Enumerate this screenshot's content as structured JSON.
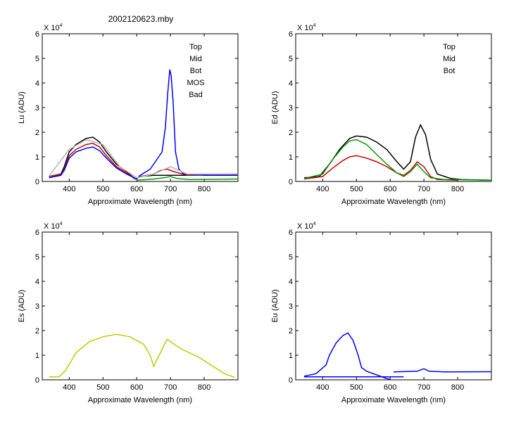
{
  "figure": {
    "title": "2002120623.mby"
  },
  "colors": {
    "top": "#000000",
    "mid": "#cc0000",
    "bot": "#009900",
    "mos": "#0000ff",
    "bad": "#b4b4b4",
    "es": "#c8c800",
    "eu": "#0000ff"
  },
  "chart_data": [
    {
      "id": "lu",
      "type": "line",
      "ylabel": "Lu (ADU)",
      "xlabel": "Approximate Wavelength (nm)",
      "exponent_label": "X 10",
      "exponent_power": "4",
      "xlim": [
        320,
        900
      ],
      "ylim": [
        0,
        6
      ],
      "x_ticks": [
        400,
        500,
        600,
        700,
        800
      ],
      "y_ticks": [
        0,
        1,
        2,
        3,
        4,
        5,
        6
      ],
      "legend": [
        {
          "label": "Top",
          "color": "#000000"
        },
        {
          "label": "Mid",
          "color": "#cc0000"
        },
        {
          "label": "Bot",
          "color": "#009900"
        },
        {
          "label": "MOS",
          "color": "#0000ff"
        },
        {
          "label": "Bad",
          "color": "#b4b4b4"
        }
      ],
      "series": [
        {
          "name": "Top",
          "color": "#000000",
          "x": [
            340,
            375,
            385,
            400,
            420,
            450,
            470,
            490,
            510,
            540,
            570,
            595,
            610,
            650,
            700,
            750,
            800,
            900
          ],
          "y": [
            0.2,
            0.3,
            0.6,
            1.2,
            1.5,
            1.75,
            1.8,
            1.6,
            1.2,
            0.7,
            0.4,
            0.1,
            0.2,
            0.25,
            0.25,
            0.25,
            0.27,
            0.3
          ]
        },
        {
          "name": "Mid",
          "color": "#cc0000",
          "x": [
            340,
            375,
            385,
            400,
            420,
            450,
            470,
            490,
            510,
            540,
            570,
            595,
            610,
            650,
            670,
            690,
            710,
            750,
            900
          ],
          "y": [
            0.2,
            0.28,
            0.5,
            1.05,
            1.3,
            1.5,
            1.55,
            1.4,
            1.05,
            0.6,
            0.35,
            0.1,
            0.2,
            0.3,
            0.45,
            0.5,
            0.4,
            0.25,
            0.28
          ]
        },
        {
          "name": "Bot",
          "color": "#009900",
          "x": [
            600,
            650,
            680,
            700,
            720,
            760,
            900
          ],
          "y": [
            0.05,
            0.1,
            0.15,
            0.2,
            0.12,
            0.08,
            0.1
          ]
        },
        {
          "name": "MOS",
          "color": "#0000ff",
          "x": [
            340,
            375,
            385,
            400,
            420,
            450,
            470,
            490,
            510,
            540,
            570,
            600,
            610,
            640,
            660,
            675,
            685,
            692,
            698,
            702,
            708,
            715,
            725,
            740,
            800,
            900
          ],
          "y": [
            0.15,
            0.25,
            0.45,
            0.95,
            1.2,
            1.35,
            1.4,
            1.25,
            0.95,
            0.55,
            0.3,
            0.1,
            0.25,
            0.5,
            0.9,
            1.2,
            2.2,
            3.6,
            4.55,
            4.3,
            3.2,
            1.2,
            0.5,
            0.3,
            0.25,
            0.25
          ]
        },
        {
          "name": "Bad",
          "color": "#b4b4b4",
          "x": [
            340,
            400,
            450,
            500,
            550,
            600,
            650,
            700,
            750,
            900
          ],
          "y": [
            0.22,
            1.3,
            1.7,
            1.5,
            0.6,
            0.15,
            0.3,
            0.6,
            0.3,
            0.3
          ]
        }
      ]
    },
    {
      "id": "ed",
      "type": "line",
      "ylabel": "Ed  (ADU)",
      "xlabel": "Approximate Wavelength (nm)",
      "exponent_label": "X 10",
      "exponent_power": "4",
      "xlim": [
        320,
        900
      ],
      "ylim": [
        0,
        6
      ],
      "x_ticks": [
        400,
        500,
        600,
        700,
        800
      ],
      "y_ticks": [
        0,
        1,
        2,
        3,
        4,
        5,
        6
      ],
      "legend": [
        {
          "label": "Top",
          "color": "#000000"
        },
        {
          "label": "Mid",
          "color": "#cc0000"
        },
        {
          "label": "Bot",
          "color": "#009900"
        }
      ],
      "series": [
        {
          "name": "Top",
          "color": "#000000",
          "x": [
            345,
            390,
            420,
            450,
            480,
            500,
            530,
            560,
            590,
            620,
            640,
            660,
            675,
            690,
            705,
            720,
            740,
            780,
            810,
            900
          ],
          "y": [
            0.15,
            0.2,
            0.7,
            1.3,
            1.75,
            1.85,
            1.8,
            1.6,
            1.3,
            0.8,
            0.5,
            0.8,
            1.8,
            2.3,
            1.9,
            0.9,
            0.3,
            0.12,
            0.08,
            0.05
          ]
        },
        {
          "name": "Mid",
          "color": "#cc0000",
          "x": [
            345,
            400,
            430,
            460,
            480,
            500,
            530,
            560,
            590,
            620,
            640,
            660,
            680,
            700,
            720,
            740,
            800
          ],
          "y": [
            0.1,
            0.2,
            0.55,
            0.85,
            1.0,
            1.05,
            0.95,
            0.8,
            0.6,
            0.35,
            0.25,
            0.45,
            0.8,
            0.6,
            0.2,
            0.08,
            0.05
          ]
        },
        {
          "name": "Bot",
          "color": "#009900",
          "x": [
            345,
            400,
            430,
            460,
            480,
            500,
            530,
            560,
            590,
            620,
            640,
            660,
            680,
            700,
            720,
            760,
            900
          ],
          "y": [
            0.12,
            0.3,
            0.9,
            1.4,
            1.65,
            1.7,
            1.5,
            1.1,
            0.7,
            0.35,
            0.2,
            0.4,
            0.7,
            0.4,
            0.15,
            0.08,
            0.05
          ]
        }
      ]
    },
    {
      "id": "es",
      "type": "line",
      "ylabel": "Es  (ADU)",
      "xlabel": "Approximate Wavelength (nm)",
      "exponent_label": "X 10",
      "exponent_power": "4",
      "xlim": [
        320,
        900
      ],
      "ylim": [
        0,
        6
      ],
      "x_ticks": [
        400,
        500,
        600,
        700,
        800
      ],
      "y_ticks": [
        0,
        1,
        2,
        3,
        4,
        5,
        6
      ],
      "legend": [],
      "series": [
        {
          "name": "",
          "color": "#c8c800",
          "x": [
            340,
            370,
            390,
            420,
            460,
            500,
            540,
            580,
            620,
            640,
            650,
            670,
            690,
            710,
            740,
            780,
            820,
            860,
            890
          ],
          "y": [
            0.12,
            0.12,
            0.4,
            1.1,
            1.55,
            1.75,
            1.85,
            1.75,
            1.45,
            1.0,
            0.55,
            1.1,
            1.65,
            1.45,
            1.2,
            0.95,
            0.6,
            0.25,
            0.1
          ]
        }
      ]
    },
    {
      "id": "eu",
      "type": "line",
      "ylabel": "Eu  (ADU)",
      "xlabel": "Approximate Wavelength (nm)",
      "exponent_label": "X 10",
      "exponent_power": "4",
      "xlim": [
        320,
        900
      ],
      "ylim": [
        0,
        6
      ],
      "x_ticks": [
        400,
        500,
        600,
        700,
        800
      ],
      "y_ticks": [
        0,
        1,
        2,
        3,
        4,
        5,
        6
      ],
      "legend": [],
      "series": [
        {
          "name": "",
          "color": "#0000ff",
          "x": [
            345,
            380,
            410,
            420,
            440,
            460,
            475,
            490,
            505,
            515,
            530,
            560,
            590,
            600
          ],
          "y": [
            0.15,
            0.25,
            0.6,
            1.0,
            1.5,
            1.8,
            1.9,
            1.6,
            1.0,
            0.5,
            0.35,
            0.2,
            0.05,
            0.02
          ]
        },
        {
          "name": "",
          "color": "#0000ff",
          "x": [
            345,
            640
          ],
          "y": [
            0.12,
            0.12
          ]
        },
        {
          "name": "",
          "color": "#0000ff",
          "x": [
            610,
            680,
            700,
            715,
            760,
            900
          ],
          "y": [
            0.32,
            0.35,
            0.45,
            0.35,
            0.32,
            0.33
          ]
        }
      ]
    }
  ]
}
